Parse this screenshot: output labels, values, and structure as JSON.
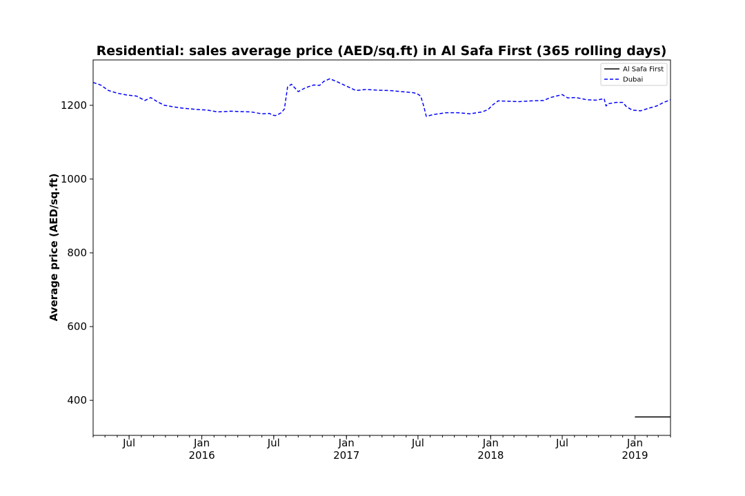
{
  "chart_data": {
    "type": "line",
    "title": "Residential: sales average price (AED/sq.ft) in Al Safa First (365 rolling days)",
    "xlabel": "",
    "ylabel": "Average price (AED/sq.ft)",
    "xlim": [
      "2015-04-01",
      "2019-04-01"
    ],
    "ylim": [
      305,
      1323
    ],
    "yticks": [
      400,
      600,
      800,
      1000,
      1200
    ],
    "xticks": [
      {
        "date": "2015-07-01",
        "label": "Jul",
        "year": ""
      },
      {
        "date": "2016-01-01",
        "label": "Jan",
        "year": "2016"
      },
      {
        "date": "2016-07-01",
        "label": "Jul",
        "year": ""
      },
      {
        "date": "2017-01-01",
        "label": "Jan",
        "year": "2017"
      },
      {
        "date": "2017-07-01",
        "label": "Jul",
        "year": ""
      },
      {
        "date": "2018-01-01",
        "label": "Jan",
        "year": "2018"
      },
      {
        "date": "2018-07-01",
        "label": "Jul",
        "year": ""
      },
      {
        "date": "2019-01-01",
        "label": "Jan",
        "year": "2019"
      }
    ],
    "grid": false,
    "legend_position": "top-right",
    "series": [
      {
        "name": "Al Safa First",
        "color": "#000000",
        "style": "solid",
        "x": [
          "2019-01-01",
          "2019-04-01"
        ],
        "y": [
          355,
          355
        ]
      },
      {
        "name": "Dubai",
        "color": "#0000ff",
        "style": "dashed",
        "x": [
          "2015-04-01",
          "2015-04-20",
          "2015-05-10",
          "2015-06-01",
          "2015-06-25",
          "2015-07-20",
          "2015-08-10",
          "2015-08-25",
          "2015-09-10",
          "2015-09-28",
          "2015-10-20",
          "2015-11-15",
          "2015-12-15",
          "2016-01-15",
          "2016-02-10",
          "2016-03-15",
          "2016-04-10",
          "2016-05-05",
          "2016-06-01",
          "2016-06-20",
          "2016-06-29",
          "2016-07-05",
          "2016-07-12",
          "2016-07-20",
          "2016-07-28",
          "2016-08-05",
          "2016-08-15",
          "2016-09-01",
          "2016-09-20",
          "2016-10-10",
          "2016-10-25",
          "2016-11-05",
          "2016-11-20",
          "2016-12-10",
          "2017-01-01",
          "2017-01-25",
          "2017-02-20",
          "2017-03-20",
          "2017-04-20",
          "2017-05-20",
          "2017-06-20",
          "2017-07-01",
          "2017-07-08",
          "2017-07-15",
          "2017-07-22",
          "2017-08-10",
          "2017-09-10",
          "2017-10-10",
          "2017-11-10",
          "2017-12-10",
          "2017-12-25",
          "2018-01-05",
          "2018-01-20",
          "2018-02-15",
          "2018-03-15",
          "2018-04-15",
          "2018-05-15",
          "2018-06-01",
          "2018-06-20",
          "2018-07-01",
          "2018-07-15",
          "2018-08-05",
          "2018-09-01",
          "2018-09-25",
          "2018-10-15",
          "2018-10-20",
          "2018-10-25",
          "2018-11-15",
          "2018-12-01",
          "2018-12-10",
          "2018-12-25",
          "2019-01-15",
          "2019-02-05",
          "2019-02-25",
          "2019-03-15",
          "2019-04-01"
        ],
        "y": [
          1262,
          1255,
          1240,
          1233,
          1228,
          1225,
          1213,
          1221,
          1210,
          1200,
          1196,
          1192,
          1189,
          1187,
          1182,
          1184,
          1183,
          1182,
          1177,
          1178,
          1173,
          1172,
          1175,
          1180,
          1190,
          1250,
          1257,
          1237,
          1248,
          1255,
          1254,
          1265,
          1272,
          1263,
          1252,
          1240,
          1243,
          1241,
          1240,
          1237,
          1234,
          1230,
          1225,
          1200,
          1170,
          1175,
          1180,
          1180,
          1177,
          1182,
          1188,
          1200,
          1212,
          1211,
          1210,
          1212,
          1213,
          1221,
          1226,
          1229,
          1220,
          1221,
          1215,
          1214,
          1218,
          1198,
          1204,
          1208,
          1208,
          1197,
          1187,
          1185,
          1192,
          1198,
          1208,
          1215
        ]
      }
    ]
  }
}
